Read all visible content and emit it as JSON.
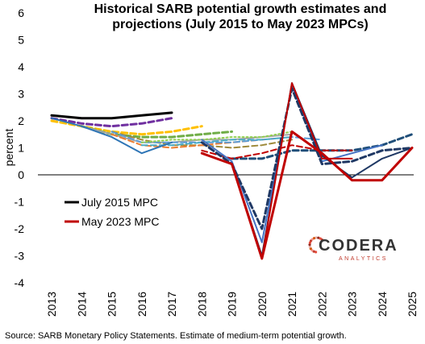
{
  "chart_data": {
    "type": "line",
    "title_lines": [
      "Historical SARB potential growth estimates and",
      "projections (July 2015 to May 2023 MPCs)"
    ],
    "ylabel": "percent",
    "xlabel": "",
    "ylim": [
      -4,
      6
    ],
    "yticks": [
      6,
      5,
      4,
      3,
      2,
      1,
      0,
      -1,
      -2,
      -3,
      -4
    ],
    "categories": [
      "2013",
      "2014",
      "2015",
      "2016",
      "2017",
      "2018",
      "2019",
      "2020",
      "2021",
      "2022",
      "2023",
      "2024",
      "2025"
    ],
    "legend": [
      {
        "label": "July 2015 MPC",
        "color": "#000000"
      },
      {
        "label": "May 2023 MPC",
        "color": "#c00000"
      }
    ],
    "series": [
      {
        "name": "July 2015 MPC",
        "color": "#000000",
        "dash": "solid",
        "width": 3,
        "x": [
          2013,
          2014,
          2015,
          2016,
          2017
        ],
        "values": [
          2.2,
          2.1,
          2.1,
          2.2,
          2.3
        ]
      },
      {
        "color": "#7030a0",
        "dash": "dash",
        "width": 3,
        "x": [
          2013,
          2014,
          2015,
          2016,
          2017
        ],
        "values": [
          2.1,
          1.9,
          1.8,
          1.9,
          2.1
        ]
      },
      {
        "color": "#ffc000",
        "dash": "dash",
        "width": 3,
        "x": [
          2013,
          2014,
          2015,
          2016,
          2017,
          2018
        ],
        "values": [
          2.0,
          1.8,
          1.6,
          1.5,
          1.6,
          1.8
        ]
      },
      {
        "color": "#70ad47",
        "dash": "dash",
        "width": 3,
        "x": [
          2014,
          2015,
          2016,
          2017,
          2018,
          2019
        ],
        "values": [
          1.8,
          1.5,
          1.4,
          1.4,
          1.5,
          1.6
        ]
      },
      {
        "color": "#a5a5a5",
        "dash": "solid",
        "width": 2,
        "x": [
          2014,
          2015,
          2016,
          2017,
          2018,
          2019,
          2020,
          2021
        ],
        "values": [
          1.8,
          1.5,
          1.2,
          1.2,
          1.3,
          1.3,
          1.4,
          1.5
        ]
      },
      {
        "color": "#9e8a3a",
        "dash": "dash",
        "width": 2,
        "x": [
          2015,
          2016,
          2017,
          2018,
          2019,
          2020,
          2021
        ],
        "values": [
          1.6,
          1.3,
          1.1,
          1.1,
          1.0,
          1.1,
          1.3
        ]
      },
      {
        "color": "#ed7d31",
        "dash": "dash",
        "width": 2,
        "x": [
          2015,
          2016,
          2017,
          2018,
          2019,
          2020,
          2021
        ],
        "values": [
          1.5,
          1.1,
          1.0,
          1.1,
          1.2,
          1.3,
          1.4
        ]
      },
      {
        "color": "#5b9bd5",
        "dash": "dash",
        "width": 2,
        "x": [
          2015,
          2016,
          2017,
          2018,
          2019,
          2020,
          2021,
          2022
        ],
        "values": [
          1.6,
          1.2,
          1.2,
          1.2,
          1.2,
          1.3,
          1.4,
          1.3
        ]
      },
      {
        "color": "#92d050",
        "dash": "dot",
        "width": 2,
        "x": [
          2016,
          2017,
          2018,
          2019,
          2020,
          2021
        ],
        "values": [
          1.2,
          1.3,
          1.3,
          1.4,
          1.4,
          1.6
        ]
      },
      {
        "color": "#4bacc6",
        "dash": "dash",
        "width": 2,
        "x": [
          2016,
          2017,
          2018,
          2019,
          2020,
          2021
        ],
        "values": [
          1.1,
          1.1,
          1.2,
          1.3,
          1.3,
          1.4
        ]
      },
      {
        "color": "#2e75b6",
        "dash": "solid",
        "width": 2,
        "x": [
          2013,
          2014,
          2015,
          2016,
          2017
        ],
        "values": [
          2.1,
          1.8,
          1.4,
          0.8,
          1.2
        ]
      },
      {
        "color": "#1f4e79",
        "dash": "dash",
        "width": 3,
        "x": [
          2019,
          2020,
          2021,
          2022,
          2023,
          2024,
          2025
        ],
        "values": [
          0.6,
          0.6,
          0.9,
          0.9,
          0.9,
          1.1,
          1.5
        ]
      },
      {
        "color": "#c00000",
        "dash": "dash",
        "width": 2,
        "x": [
          2018,
          2019,
          2020,
          2021,
          2022,
          2023
        ],
        "values": [
          0.9,
          0.6,
          0.8,
          1.1,
          0.9,
          0.9
        ]
      },
      {
        "color": "#4472c4",
        "dash": "solid",
        "width": 2,
        "x": [
          2018,
          2019,
          2020,
          2021,
          2022,
          2023,
          2024
        ],
        "values": [
          1.3,
          0.5,
          -2.5,
          3.3,
          0.5,
          0.8,
          1.1
        ]
      },
      {
        "color": "#1f3864",
        "dash": "dash",
        "width": 3,
        "x": [
          2018,
          2019,
          2020,
          2021,
          2022,
          2023,
          2024,
          2025
        ],
        "values": [
          1.2,
          0.4,
          -2.0,
          3.2,
          0.4,
          0.5,
          0.9,
          1.0
        ]
      },
      {
        "color": "#1f3864",
        "dash": "solid",
        "width": 2,
        "x": [
          2019,
          2020,
          2021,
          2022,
          2023,
          2024,
          2025
        ],
        "values": [
          0.4,
          -3.0,
          3.4,
          0.7,
          -0.1,
          0.6,
          1.0
        ]
      },
      {
        "name": "May 2023 MPC",
        "color": "#c00000",
        "dash": "solid",
        "width": 3,
        "x": [
          2018,
          2019,
          2020,
          2021,
          2022,
          2023,
          2024,
          2025
        ],
        "values": [
          0.8,
          0.4,
          -3.1,
          1.6,
          0.8,
          -0.2,
          -0.2,
          1.0
        ]
      },
      {
        "color": "#c00000",
        "dash": "solid",
        "width": 2,
        "x": [
          2019,
          2020,
          2021,
          2022,
          2023
        ],
        "values": [
          0.4,
          -3.1,
          3.4,
          0.6,
          0.6
        ]
      }
    ]
  },
  "source": "Source: SARB Monetary Policy Statements. Estimate of medium-term potential growth.",
  "brand": {
    "name": "CODERA",
    "sub": "ANALYTICS"
  }
}
